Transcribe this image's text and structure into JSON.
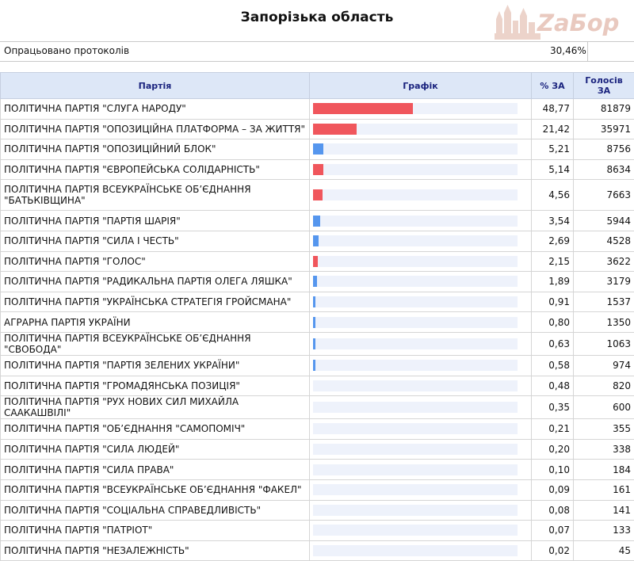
{
  "page": {
    "title": "Запорізька область",
    "logo_text": "ZaБор",
    "protocols_label": "Опрацьовано протоколів",
    "protocols_value": "30,46%"
  },
  "table": {
    "headers": {
      "party": "Партія",
      "graph": "Графік",
      "percent": "% ЗА",
      "votes_line1": "Голосів",
      "votes_line2": "ЗА"
    },
    "max_percent": 100,
    "rows": [
      {
        "party": "ПОЛІТИЧНА ПАРТІЯ \"СЛУГА НАРОДУ\"",
        "percent": "48,77",
        "votes": "81879",
        "share": 48.77,
        "color": "#f0565c"
      },
      {
        "party": "ПОЛІТИЧНА ПАРТІЯ \"ОПОЗИЦІЙНА ПЛАТФОРМА – ЗА ЖИТТЯ\"",
        "percent": "21,42",
        "votes": "35971",
        "share": 21.42,
        "color": "#f0565c"
      },
      {
        "party": "ПОЛІТИЧНА ПАРТІЯ \"ОПОЗИЦІЙНИЙ БЛОК\"",
        "percent": "5,21",
        "votes": "8756",
        "share": 5.21,
        "color": "#5596ee"
      },
      {
        "party": "ПОЛІТИЧНА ПАРТІЯ \"ЄВРОПЕЙСЬКА СОЛІДАРНІСТЬ\"",
        "percent": "5,14",
        "votes": "8634",
        "share": 5.14,
        "color": "#f0565c"
      },
      {
        "party": "ПОЛІТИЧНА ПАРТІЯ ВСЕУКРАЇНСЬКЕ ОБ’ЄДНАННЯ \"БАТЬКІВЩИНА\"",
        "percent": "4,56",
        "votes": "7663",
        "share": 4.56,
        "color": "#f0565c"
      },
      {
        "party": "ПОЛІТИЧНА ПАРТІЯ \"ПАРТІЯ ШАРІЯ\"",
        "percent": "3,54",
        "votes": "5944",
        "share": 3.54,
        "color": "#5596ee"
      },
      {
        "party": "ПОЛІТИЧНА ПАРТІЯ \"СИЛА І ЧЕСТЬ\"",
        "percent": "2,69",
        "votes": "4528",
        "share": 2.69,
        "color": "#5596ee"
      },
      {
        "party": "ПОЛІТИЧНА ПАРТІЯ \"ГОЛОС\"",
        "percent": "2,15",
        "votes": "3622",
        "share": 2.15,
        "color": "#f0565c"
      },
      {
        "party": "ПОЛІТИЧНА ПАРТІЯ \"РАДИКАЛЬНА ПАРТІЯ ОЛЕГА ЛЯШКА\"",
        "percent": "1,89",
        "votes": "3179",
        "share": 1.89,
        "color": "#5596ee"
      },
      {
        "party": "ПОЛІТИЧНА ПАРТІЯ \"УКРАЇНСЬКА СТРАТЕГІЯ ГРОЙСМАНА\"",
        "percent": "0,91",
        "votes": "1537",
        "share": 0.91,
        "color": "#5596ee"
      },
      {
        "party": "АГРАРНА ПАРТІЯ УКРАЇНИ",
        "percent": "0,80",
        "votes": "1350",
        "share": 0.8,
        "color": "#5596ee"
      },
      {
        "party": "ПОЛІТИЧНА ПАРТІЯ ВСЕУКРАЇНСЬКЕ ОБ’ЄДНАННЯ \"СВОБОДА\"",
        "percent": "0,63",
        "votes": "1063",
        "share": 0.63,
        "color": "#5596ee"
      },
      {
        "party": "ПОЛІТИЧНА ПАРТІЯ \"ПАРТІЯ ЗЕЛЕНИХ УКРАЇНИ\"",
        "percent": "0,58",
        "votes": "974",
        "share": 0.58,
        "color": "#5596ee"
      },
      {
        "party": "ПОЛІТИЧНА ПАРТІЯ \"ГРОМАДЯНСЬКА ПОЗИЦІЯ\"",
        "percent": "0,48",
        "votes": "820",
        "share": 0.48,
        "color": "#5596ee"
      },
      {
        "party": "ПОЛІТИЧНА ПАРТІЯ \"РУХ НОВИХ СИЛ МИХАЙЛА СААКАШВІЛІ\"",
        "percent": "0,35",
        "votes": "600",
        "share": 0.35,
        "color": "#5596ee"
      },
      {
        "party": "ПОЛІТИЧНА ПАРТІЯ \"ОБ’ЄДНАННЯ \"САМОПОМІЧ\"",
        "percent": "0,21",
        "votes": "355",
        "share": 0.21,
        "color": "#5596ee"
      },
      {
        "party": "ПОЛІТИЧНА ПАРТІЯ \"СИЛА ЛЮДЕЙ\"",
        "percent": "0,20",
        "votes": "338",
        "share": 0.2,
        "color": "#5596ee"
      },
      {
        "party": "ПОЛІТИЧНА ПАРТІЯ \"СИЛА ПРАВА\"",
        "percent": "0,10",
        "votes": "184",
        "share": 0.1,
        "color": "#5596ee"
      },
      {
        "party": "ПОЛІТИЧНА ПАРТІЯ \"ВСЕУКРАЇНСЬКЕ ОБ’ЄДНАННЯ \"ФАКЕЛ\"",
        "percent": "0,09",
        "votes": "161",
        "share": 0.09,
        "color": "#5596ee"
      },
      {
        "party": "ПОЛІТИЧНА ПАРТІЯ \"СОЦІАЛЬНА СПРАВЕДЛИВІСТЬ\"",
        "percent": "0,08",
        "votes": "141",
        "share": 0.08,
        "color": "#5596ee"
      },
      {
        "party": "ПОЛІТИЧНА ПАРТІЯ \"ПАТРІОТ\"",
        "percent": "0,07",
        "votes": "133",
        "share": 0.07,
        "color": "#5596ee"
      },
      {
        "party": "ПОЛІТИЧНА ПАРТІЯ \"НЕЗАЛЕЖНІСТЬ\"",
        "percent": "0,02",
        "votes": "45",
        "share": 0.02,
        "color": "#5596ee"
      }
    ]
  }
}
